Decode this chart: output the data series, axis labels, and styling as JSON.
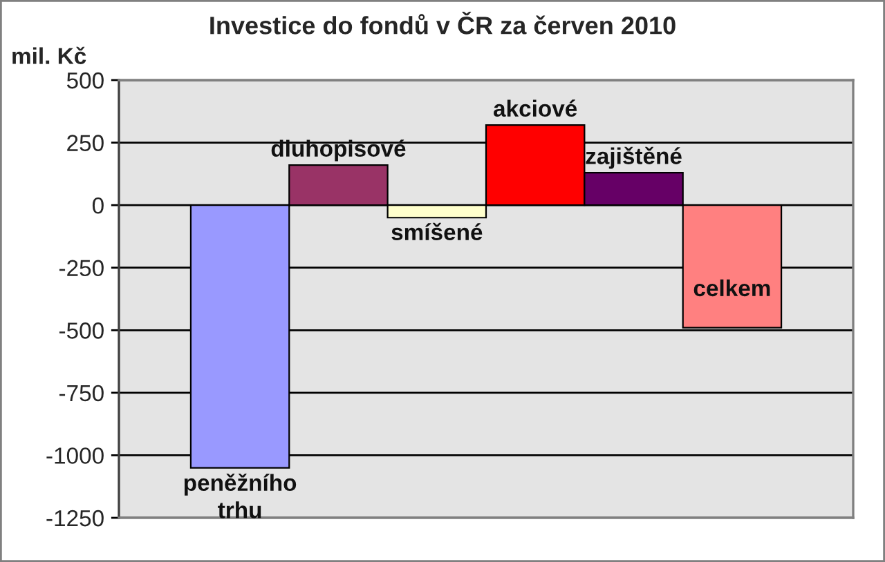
{
  "chart_data": {
    "type": "bar",
    "title": "Investice do fondů v ČR za červen 2010",
    "ylabel": "mil. Kč",
    "categories": [
      "peněžního trhu",
      "dluhopisové",
      "smíšené",
      "akciové",
      "zajištěné",
      "celkem"
    ],
    "values": [
      -1050,
      160,
      -50,
      320,
      130,
      -490
    ],
    "colors": [
      "#9999ff",
      "#993366",
      "#ffffcc",
      "#ff0000",
      "#660066",
      "#ff8080"
    ],
    "ylim": [
      -1250,
      500
    ],
    "yticks": [
      -1250,
      -1000,
      -750,
      -500,
      -250,
      0,
      250,
      500
    ],
    "grid": "y",
    "tick_labels": "y"
  }
}
